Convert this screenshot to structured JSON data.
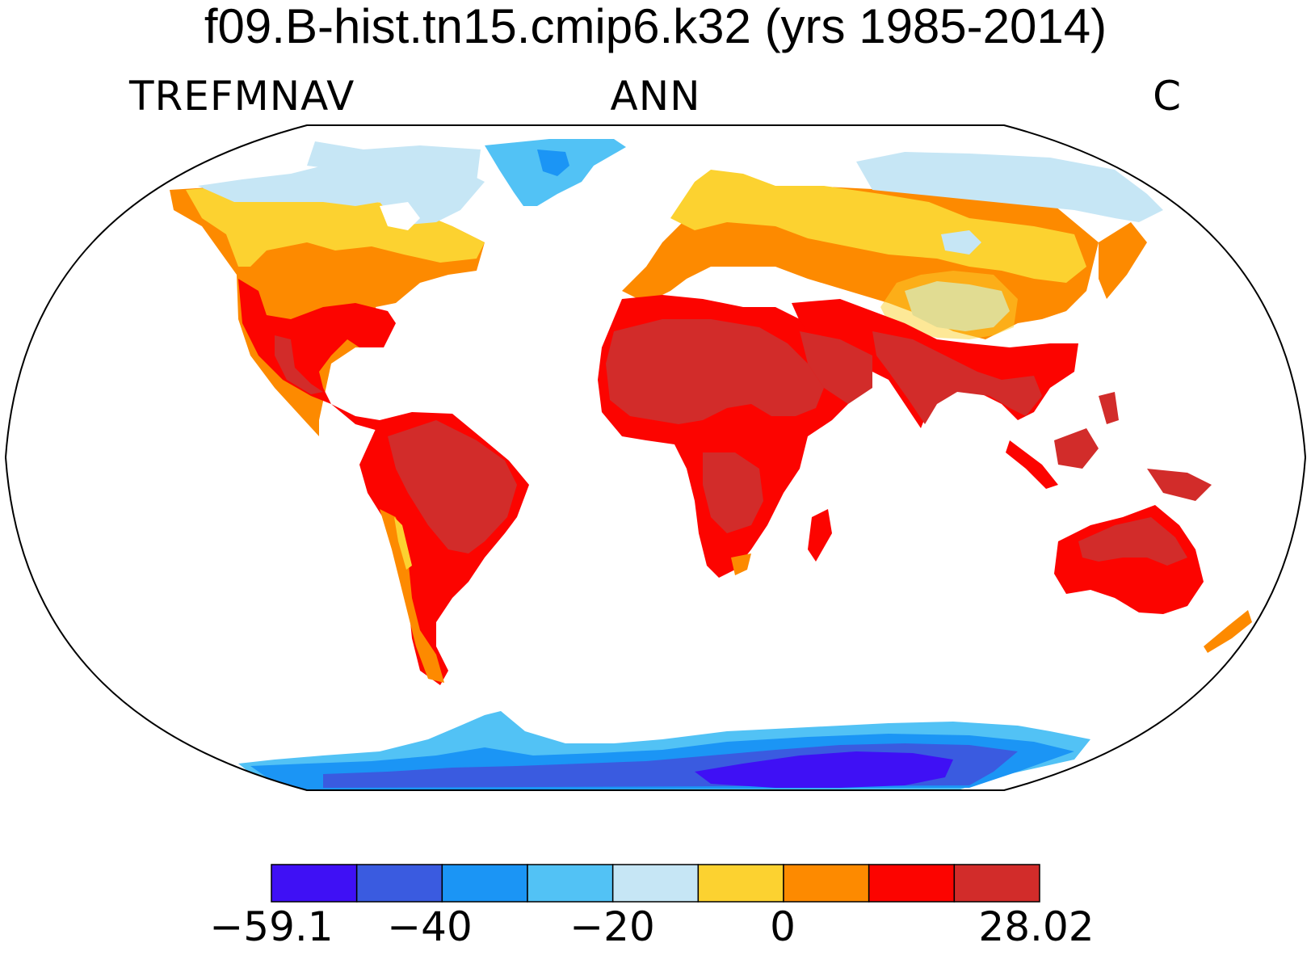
{
  "header": {
    "title": "f09.B-hist.tn15.cmip6.k32 (yrs 1985-2014)",
    "variable": "TREFMNAV",
    "season": "ANN",
    "units": "C"
  },
  "colorbar": {
    "colors": [
      "#3f10f5",
      "#3a5be0",
      "#1b95f5",
      "#52c2f5",
      "#c6e6f5",
      "#fcd230",
      "#fd8a00",
      "#fc0400",
      "#d22c2a"
    ],
    "tick_labels": [
      "−59.1",
      "−40",
      "−20",
      "0",
      "28.02"
    ]
  },
  "map": {
    "projection": "Robinson",
    "background": "#ffffff",
    "outline_color": "#000000"
  }
}
